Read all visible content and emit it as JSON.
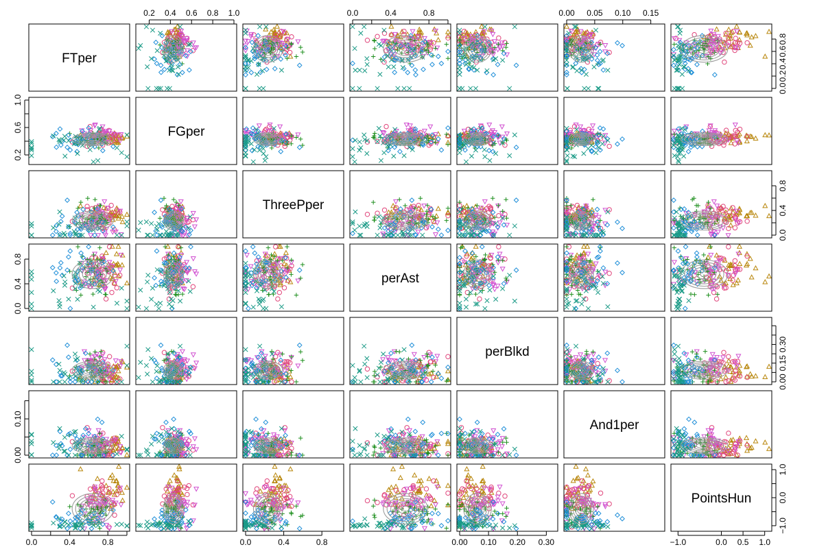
{
  "chart_data": {
    "type": "scatter",
    "subtype": "scatterplot-matrix",
    "title": "",
    "variables": [
      {
        "name": "FTper",
        "range": [
          0,
          1
        ],
        "ticks": [
          0.0,
          0.4,
          0.8
        ],
        "tick_labels": [
          "0.0",
          "0.4",
          "0.8"
        ]
      },
      {
        "name": "FGper",
        "range": [
          0.1,
          1.0
        ],
        "ticks": [
          0.2,
          0.4,
          0.6,
          0.8,
          1.0
        ],
        "tick_labels": [
          "0.2",
          "0.4",
          "0.6",
          "0.8",
          "1.0"
        ]
      },
      {
        "name": "ThreePper",
        "range": [
          0,
          1
        ],
        "ticks": [
          0.0,
          0.4,
          0.8
        ],
        "tick_labels": [
          "0.0",
          "0.4",
          "0.8"
        ]
      },
      {
        "name": "perAst",
        "range": [
          0,
          1
        ],
        "ticks": [
          0.0,
          0.4,
          0.8
        ],
        "tick_labels": [
          "0.0",
          "0.4",
          "0.8"
        ]
      },
      {
        "name": "perBlkd",
        "range": [
          0,
          0.33
        ],
        "ticks": [
          0.0,
          0.1,
          0.2,
          0.3
        ],
        "tick_labels": [
          "0.00",
          "0.10",
          "0.20",
          "0.30"
        ]
      },
      {
        "name": "And1per",
        "range": [
          0,
          0.17
        ],
        "ticks": [
          0.0,
          0.05,
          0.1,
          0.15
        ],
        "tick_labels": [
          "0.00",
          "0.05",
          "0.10",
          "0.15"
        ]
      },
      {
        "name": "PointsHun",
        "range": [
          -1.1,
          1.1
        ],
        "ticks": [
          -1.0,
          0.0,
          0.5,
          1.0
        ],
        "tick_labels": [
          "−1.0",
          "0.0",
          "0.5",
          "1.0"
        ]
      }
    ],
    "axes": {
      "bottom": [
        0,
        4
      ],
      "top": [
        1,
        3,
        5
      ],
      "left": [
        1,
        3,
        5
      ],
      "right": [
        0,
        2,
        4,
        6
      ]
    },
    "axis_tick_overrides": {
      "top": {
        "1": {
          "ticks": [
            0.2,
            0.4,
            0.6,
            0.8,
            1.0
          ],
          "tick_labels": [
            "0.2",
            "0.4",
            "0.6",
            "0.8",
            "1.0"
          ]
        },
        "3": {
          "ticks": [
            0.0,
            0.2,
            0.4,
            0.6,
            0.8,
            1.0
          ],
          "tick_labels": [
            "0.0",
            "",
            "0.4",
            "",
            "0.8",
            ""
          ]
        },
        "5": {
          "ticks": [
            0.0,
            0.05,
            0.1,
            0.15
          ],
          "tick_labels": [
            "0.00",
            "0.05",
            "0.10",
            "0.15"
          ]
        }
      },
      "bottom": {
        "0": {
          "ticks": [
            0.0,
            0.2,
            0.4,
            0.6,
            0.8,
            1.0
          ],
          "tick_labels": [
            "0.0",
            "",
            "0.4",
            "",
            "0.8",
            ""
          ]
        },
        "2": {
          "ticks": [
            0.0,
            0.4,
            0.8
          ],
          "tick_labels": [
            "0.0",
            "0.4",
            "0.8"
          ]
        },
        "4": {
          "ticks": [
            0.0,
            0.1,
            0.2,
            0.3
          ],
          "tick_labels": [
            "0.00",
            "0.10",
            "0.20",
            "0.30"
          ]
        },
        "6": {
          "ticks": [
            -1.0,
            0.0,
            0.5,
            1.0
          ],
          "tick_labels": [
            "−1.0",
            "0.0",
            "0.5",
            "1.0"
          ]
        }
      },
      "left": {
        "1": {
          "ticks": [
            0.2,
            0.4,
            0.6,
            0.8,
            1.0
          ],
          "tick_labels": [
            "0.2",
            "",
            "0.6",
            "",
            "1.0"
          ]
        },
        "3": {
          "ticks": [
            0.0,
            0.4,
            0.8
          ],
          "tick_labels": [
            "0.0",
            "0.4",
            "0.8"
          ]
        },
        "5": {
          "ticks": [
            0.0,
            0.05,
            0.1,
            0.15
          ],
          "tick_labels": [
            "0.00",
            "",
            "0.10",
            ""
          ]
        }
      },
      "right": {
        "0": {
          "ticks": [
            0.0,
            0.2,
            0.4,
            0.6,
            0.8
          ],
          "tick_labels": [
            "0.0",
            "0.2",
            "0.4",
            "0.6",
            "0.8"
          ]
        },
        "2": {
          "ticks": [
            0.0,
            0.2,
            0.4,
            0.6,
            0.8
          ],
          "tick_labels": [
            "0.0",
            "",
            "0.4",
            "",
            "0.8"
          ]
        },
        "4": {
          "ticks": [
            0.0,
            0.05,
            0.1,
            0.15,
            0.2,
            0.25,
            0.3
          ],
          "tick_labels": [
            "0.00",
            "",
            "0.15",
            "",
            "0.30",
            "",
            ""
          ]
        },
        "6": {
          "ticks": [
            -1.0,
            -0.5,
            0.0,
            0.5,
            1.0
          ],
          "tick_labels": [
            "−1.0",
            "",
            "0.0",
            "",
            "1.0"
          ]
        }
      }
    },
    "groups": [
      {
        "marker": "triangle-up",
        "color": "#b8860b"
      },
      {
        "marker": "circle",
        "color": "#e0457b"
      },
      {
        "marker": "triangle-down",
        "color": "#d04fd0"
      },
      {
        "marker": "plus",
        "color": "#1f8f1f"
      },
      {
        "marker": "diamond",
        "color": "#1e8ed8"
      },
      {
        "marker": "cross",
        "color": "#1a9a86"
      }
    ],
    "group_profiles": {
      "FTper": [
        [
          0.78,
          0.1
        ],
        [
          0.72,
          0.1
        ],
        [
          0.7,
          0.11
        ],
        [
          0.62,
          0.12
        ],
        [
          0.55,
          0.18
        ],
        [
          0.45,
          0.3
        ]
      ],
      "FGper": [
        [
          0.45,
          0.04
        ],
        [
          0.46,
          0.06
        ],
        [
          0.48,
          0.06
        ],
        [
          0.42,
          0.05
        ],
        [
          0.4,
          0.08
        ],
        [
          0.35,
          0.16
        ]
      ],
      "ThreePper": [
        [
          0.33,
          0.06
        ],
        [
          0.3,
          0.12
        ],
        [
          0.22,
          0.14
        ],
        [
          0.28,
          0.1
        ],
        [
          0.2,
          0.15
        ],
        [
          0.1,
          0.15
        ]
      ],
      "perAst": [
        [
          0.6,
          0.18
        ],
        [
          0.62,
          0.2
        ],
        [
          0.58,
          0.18
        ],
        [
          0.6,
          0.2
        ],
        [
          0.55,
          0.22
        ],
        [
          0.4,
          0.3
        ]
      ],
      "perBlkd": [
        [
          0.05,
          0.03
        ],
        [
          0.06,
          0.04
        ],
        [
          0.08,
          0.04
        ],
        [
          0.05,
          0.04
        ],
        [
          0.06,
          0.05
        ],
        [
          0.05,
          0.06
        ]
      ],
      "And1per": [
        [
          0.02,
          0.015
        ],
        [
          0.025,
          0.02
        ],
        [
          0.03,
          0.02
        ],
        [
          0.02,
          0.02
        ],
        [
          0.03,
          0.03
        ],
        [
          0.02,
          0.04
        ]
      ],
      "PointsHun": [
        [
          0.1,
          0.35
        ],
        [
          0.05,
          0.4
        ],
        [
          -0.2,
          0.35
        ],
        [
          -0.55,
          0.25
        ],
        [
          -0.8,
          0.2
        ],
        [
          -0.95,
          0.08
        ]
      ]
    },
    "points_per_group": 34,
    "random_seed": 20240517,
    "contour_levels": 6
  }
}
